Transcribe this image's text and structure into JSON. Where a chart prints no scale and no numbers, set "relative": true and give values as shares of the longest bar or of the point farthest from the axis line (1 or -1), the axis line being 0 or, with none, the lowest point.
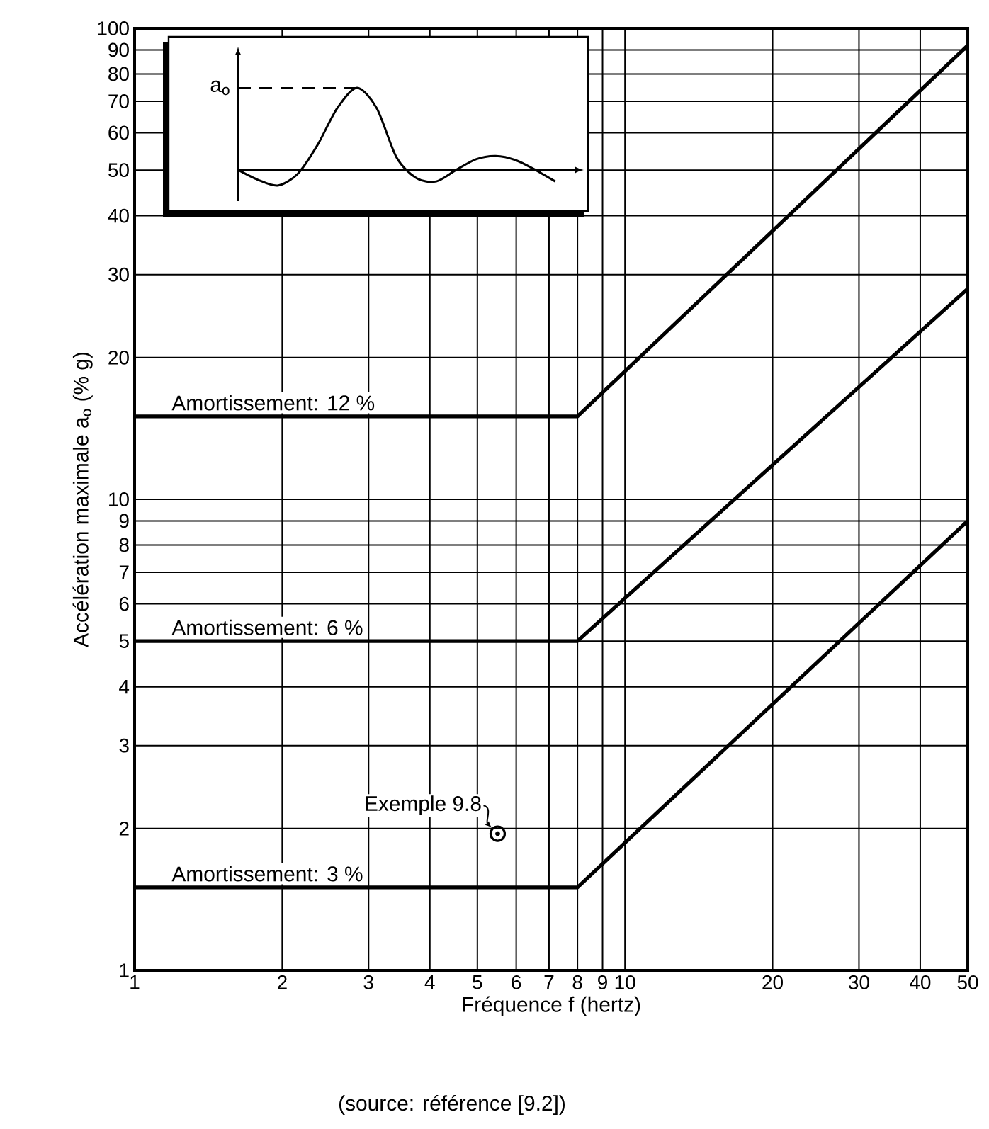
{
  "chart_data": [
    {
      "type": "line",
      "xlabel": "Fréquence f (hertz)",
      "ylabel": "Accélération maximale a$_{o}$ (% g)",
      "log": "xy",
      "grid": true,
      "xlim": [
        1,
        50
      ],
      "ylim": [
        1,
        100
      ],
      "xticks": [
        1,
        2,
        3,
        4,
        5,
        6,
        7,
        8,
        9,
        10,
        20,
        30,
        40,
        50
      ],
      "yticks": [
        1,
        2,
        3,
        4,
        5,
        6,
        7,
        8,
        9,
        10,
        20,
        30,
        40,
        50,
        60,
        70,
        80,
        90,
        100
      ],
      "series": [
        {
          "name": "Amortissement: 12 %",
          "color": "#000000",
          "x": [
            1,
            8,
            50
          ],
          "values": [
            15,
            15,
            92
          ],
          "marker": "none",
          "line_style": "solid"
        },
        {
          "name": "Amortissement: 6 %",
          "color": "#000000",
          "x": [
            1,
            8,
            50
          ],
          "values": [
            5,
            5,
            28
          ],
          "marker": "none",
          "line_style": "solid"
        },
        {
          "name": "Amortissement: 3 %",
          "color": "#000000",
          "x": [
            1,
            8,
            50
          ],
          "values": [
            1.5,
            1.5,
            9
          ],
          "marker": "none",
          "line_style": "solid"
        },
        {
          "type": "scatter",
          "color": "#000000",
          "x": [
            5.5
          ],
          "values": [
            1.95
          ],
          "marker": "circle"
        }
      ],
      "annotations": [
        {
          "text": "Exemple 9.8",
          "x": 5.5,
          "y": 1.95
        },
        "(source: référence [9.2])"
      ]
    },
    {
      "type": "line",
      "relative": true,
      "categories": [
        null,
        null,
        null,
        null,
        null,
        null,
        null,
        null,
        null,
        null,
        null,
        null,
        null,
        null,
        null,
        null,
        null
      ],
      "values": [
        0,
        -0.12,
        -0.19,
        -0.05,
        0.3,
        0.75,
        1,
        0.75,
        0.15,
        -0.1,
        -0.14,
        0,
        0.13,
        0.17,
        0.12,
        0,
        -0.14
      ],
      "color": "#000000",
      "ref_lines": [
        {
          "axis": "y",
          "value": 1,
          "label": "a$_{o}$",
          "line_style": "dashed"
        }
      ]
    }
  ]
}
